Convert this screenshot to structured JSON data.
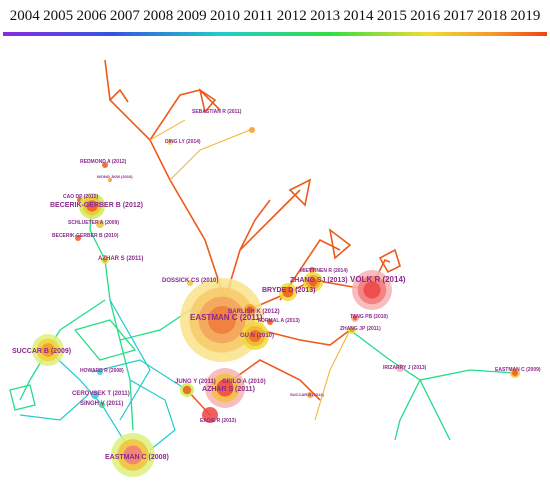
{
  "timeline": {
    "years": [
      "2004",
      "2005",
      "2006",
      "2007",
      "2008",
      "2009",
      "2010",
      "2011",
      "2012",
      "2013",
      "2014",
      "2015",
      "2016",
      "2017",
      "2018",
      "2019"
    ]
  },
  "nodes": [
    {
      "label": "SEBASTIAN R (2011)"
    },
    {
      "label": "DING LY (2014)"
    },
    {
      "label": "REDMOND A (2012)"
    },
    {
      "label": "WONG JKW (2010)"
    },
    {
      "label": "CAO DP (2015)"
    },
    {
      "label": "BECERIK-GERBER B (2012)"
    },
    {
      "label": "SCHLUETER A (2009)"
    },
    {
      "label": "BECERIK-GERBER B (2010)"
    },
    {
      "label": "AZHAR S (2011)"
    },
    {
      "label": "DOSSICK CS (2010)"
    },
    {
      "label": "MIETTINEN R (2014)"
    },
    {
      "label": "ZHANG SJ (2013)"
    },
    {
      "label": "VOLK R (2014)"
    },
    {
      "label": "BRYDE D (2013)"
    },
    {
      "label": "EASTMAN C (2011)"
    },
    {
      "label": "BARLISH K (2012)"
    },
    {
      "label": "FORMAL A (2013)"
    },
    {
      "label": "GU N (2010)"
    },
    {
      "label": "TANG PB (2010)"
    },
    {
      "label": "ZHANG JP (2011)"
    },
    {
      "label": "IRIZARRY J (2013)"
    },
    {
      "label": "EASTMAN C (2009)"
    },
    {
      "label": "SUCCAR B (2009)"
    },
    {
      "label": "HOWARD R (2008)"
    },
    {
      "label": "CEROVSEK T (2011)"
    },
    {
      "label": "SINGH V (2011)"
    },
    {
      "label": "JUNG Y (2011)"
    },
    {
      "label": "GRILO A (2010)"
    },
    {
      "label": "AZHAR S (2011)"
    },
    {
      "label": "EADIE R (2013)"
    },
    {
      "label": "SUCCAR B (2012)"
    },
    {
      "label": "EASTMAN C (2008)"
    }
  ]
}
